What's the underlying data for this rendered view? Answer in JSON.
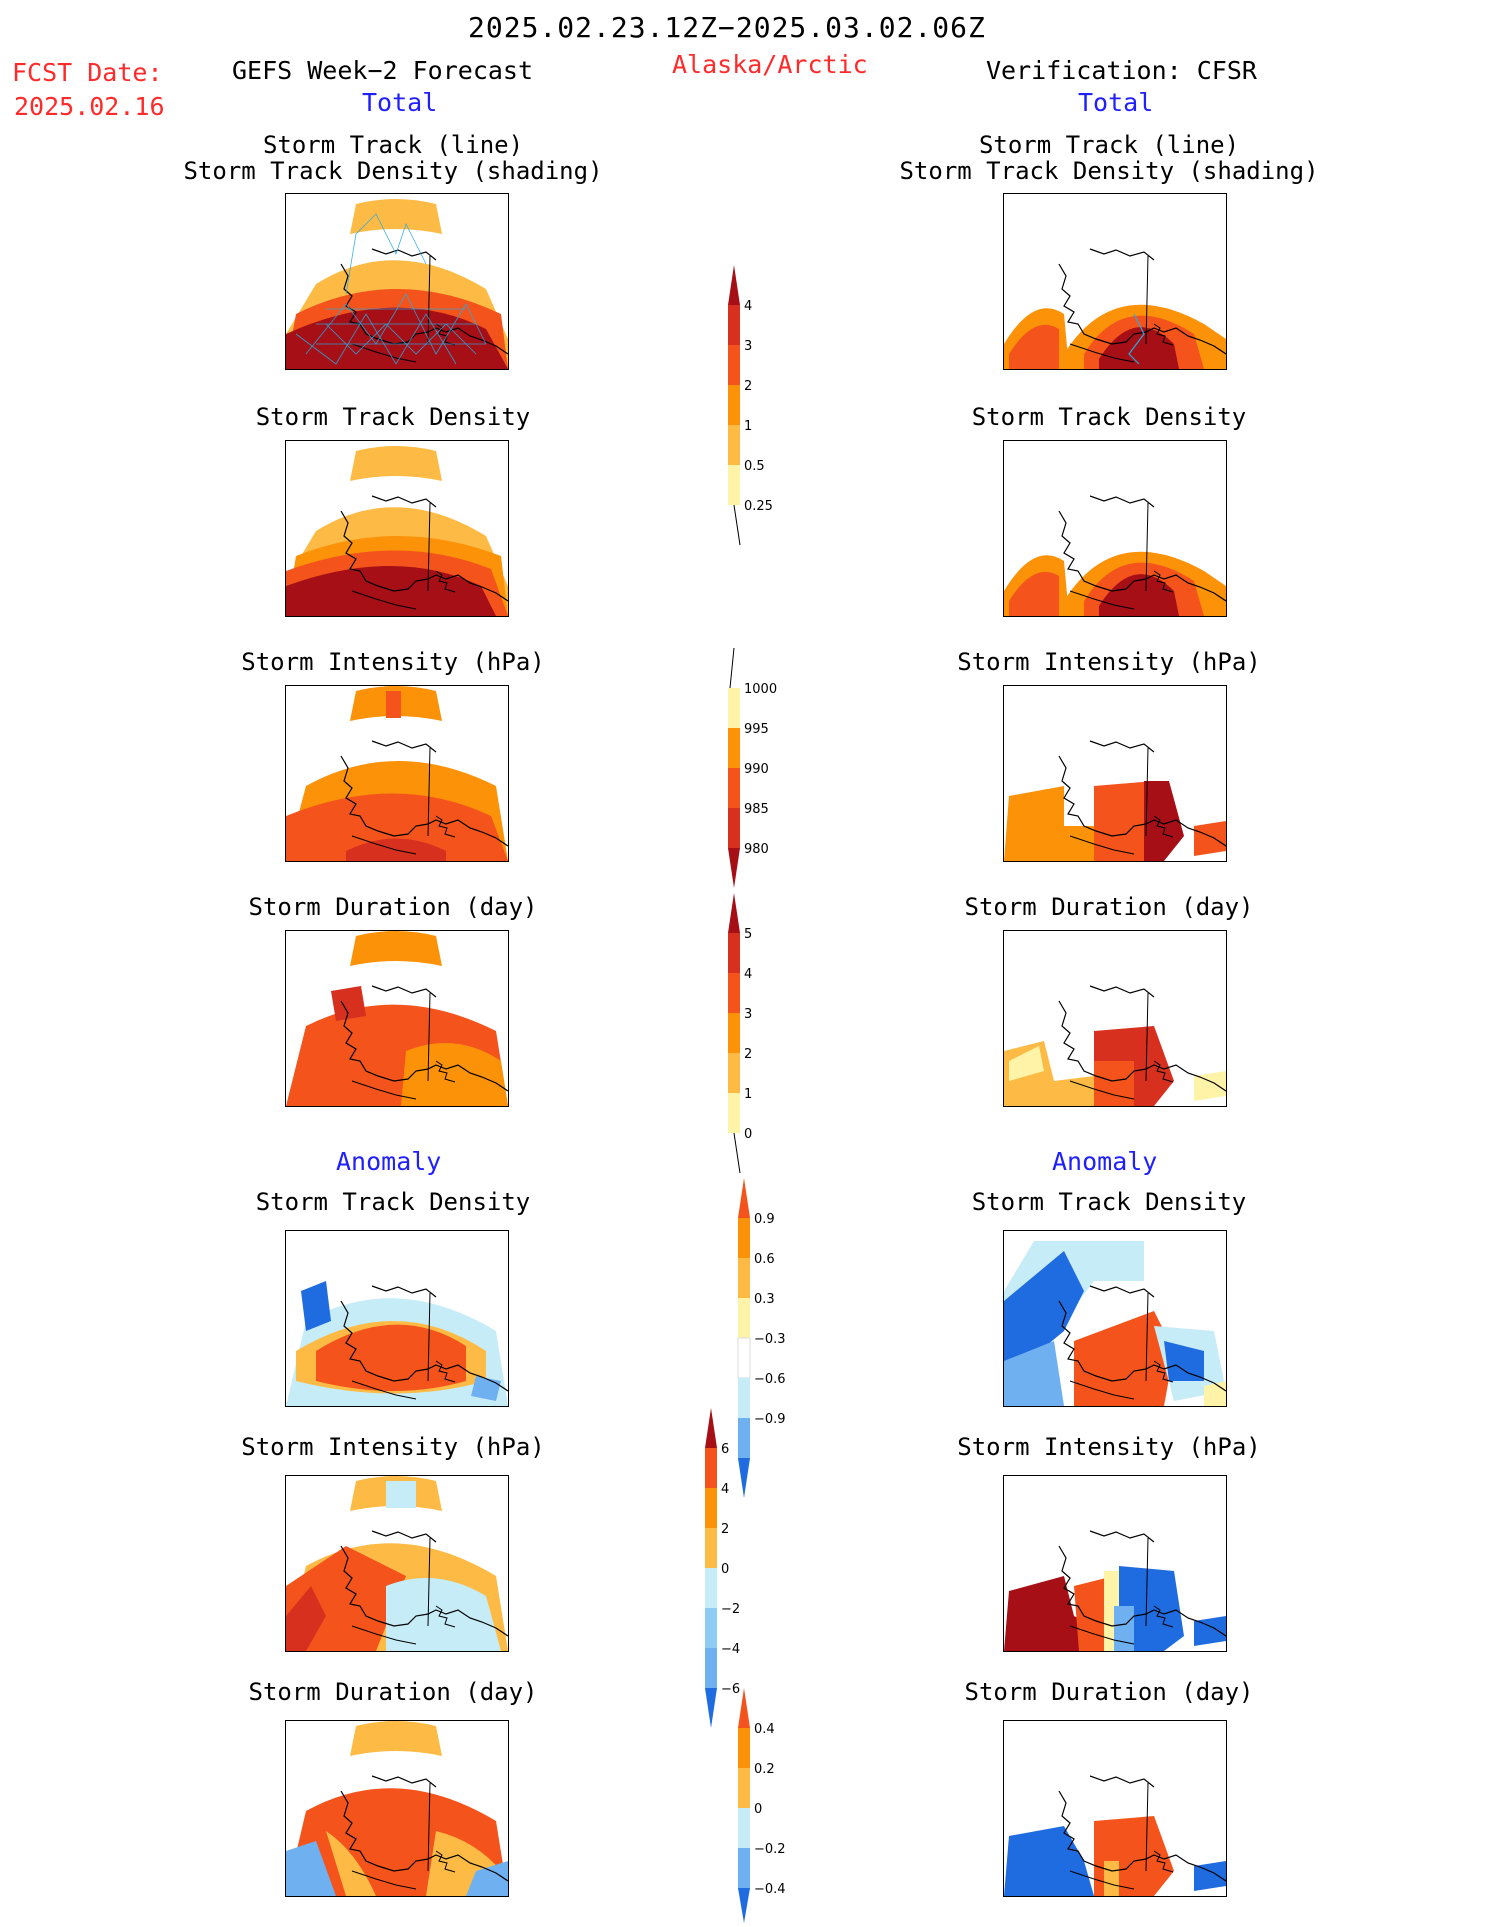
{
  "header": {
    "title": "2025.02.23.12Z−2025.03.02.06Z",
    "fcst_label": "FCST Date:",
    "fcst_date": "2025.02.16",
    "left_model": "GEFS Week−2 Forecast",
    "region": "Alaska/Arctic",
    "right_model": "Verification: CFSR",
    "total_left": "Total",
    "total_right": "Total",
    "anomaly_left": "Anomaly",
    "anomaly_right": "Anomaly"
  },
  "panels": {
    "track_line_1": "Storm Track (line)",
    "track_line_2": "Storm Track Density (shading)",
    "density": "Storm Track Density",
    "intensity": "Storm Intensity (hPa)",
    "duration": "Storm Duration (day)"
  },
  "colorbars": {
    "density_total": [
      "4",
      "3",
      "2",
      "1",
      "0.5",
      "0.25"
    ],
    "intensity_total": [
      "1000",
      "995",
      "990",
      "985",
      "980"
    ],
    "duration_total": [
      "5",
      "4",
      "3",
      "2",
      "1",
      "0"
    ],
    "density_anom": [
      "0.9",
      "0.6",
      "0.3",
      "−0.3",
      "−0.6",
      "−0.9"
    ],
    "intensity_anom": [
      "6",
      "4",
      "2",
      "0",
      "−2",
      "−4",
      "−6"
    ],
    "duration_anom": [
      "0.4",
      "0.2",
      "0",
      "−0.2",
      "−0.4"
    ]
  },
  "colors": {
    "dark_red": "#a50f15",
    "red": "#d7301f",
    "orange_red": "#f4541c",
    "orange": "#fc9208",
    "light_orange": "#fdbb45",
    "pale_yellow": "#fff3a8",
    "light_blue": "#c6ecf8",
    "mid_blue": "#6fb0f0",
    "blue": "#1f6be0",
    "track_line": "#2aa8e0",
    "title_red": "#ff2a2a",
    "title_blue": "#2020ff"
  }
}
